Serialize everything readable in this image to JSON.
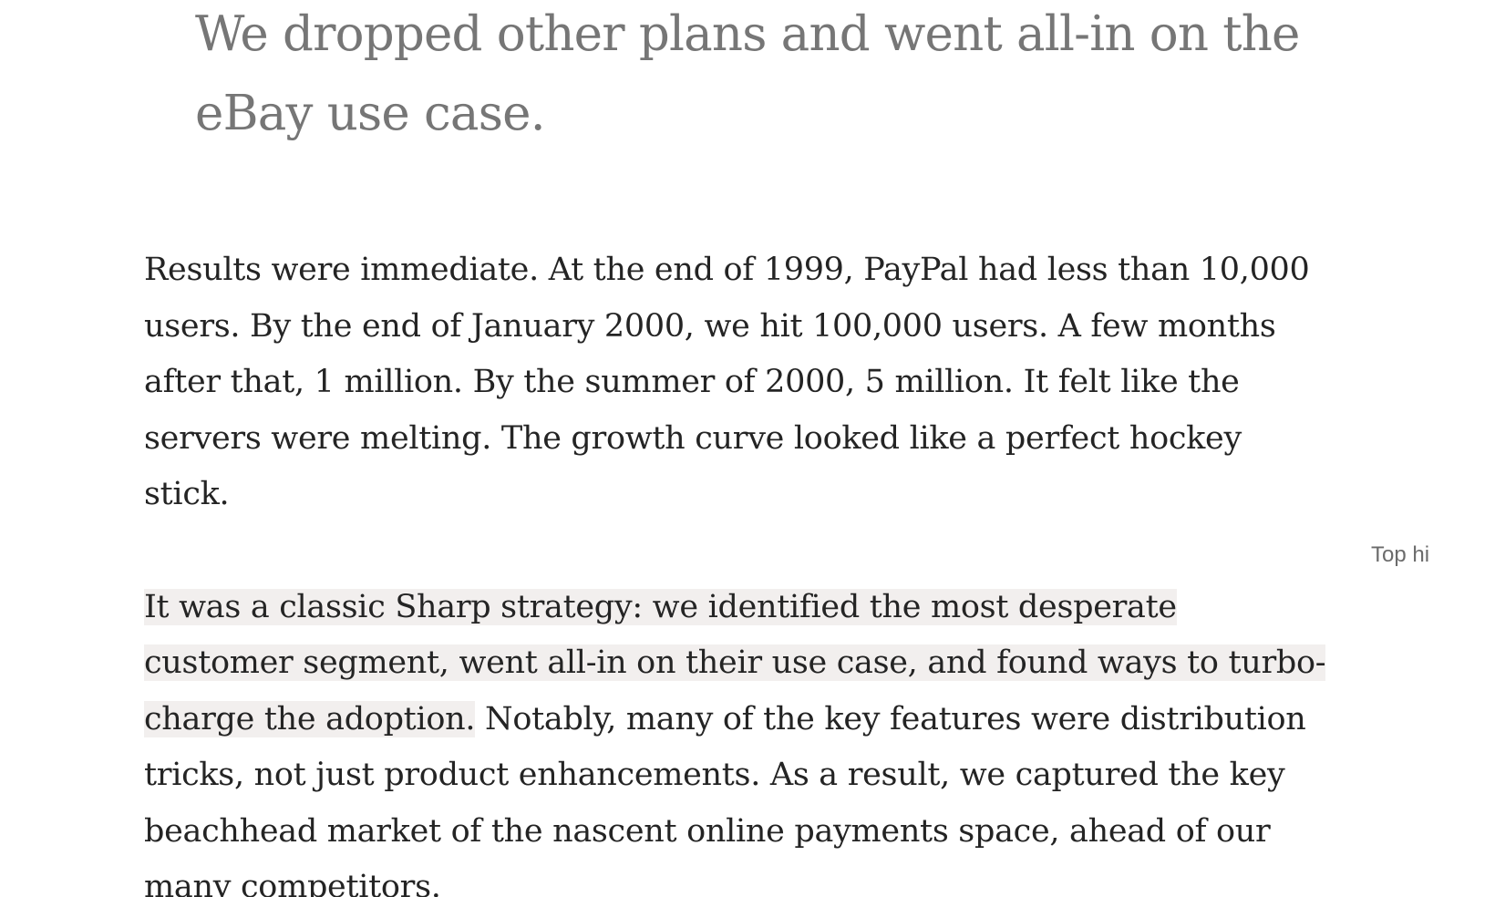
{
  "pullquote": {
    "text": "We dropped other plans and went all-in on the eBay use case."
  },
  "article": {
    "paragraph1": "Results were immediate. At the end of 1999, PayPal had less than 10,000 users. By the end of January 2000, we hit 100,000 users. A few months after that, 1 million. By the summer of 2000, 5 million. It felt like the servers were melting. The growth curve looked like a perfect hockey stick.",
    "paragraph2_highlighted": "It was a classic Sharp strategy: we identified the most desperate customer segment, went all-in on their use case, and found ways to turbo-charge the adoption.",
    "paragraph2_rest": " Notably, many of the key features were distribution tricks, not just product enhancements. As a result, we captured the key beachhead market of the nascent online payments space, ahead of our many competitors."
  },
  "sidebar": {
    "top_highlight_label": "Top hi"
  },
  "colors": {
    "pullquote_text": "#767676",
    "body_text": "#242424",
    "highlight_background": "#f2efee",
    "sidebar_label": "#6b6b6b"
  }
}
